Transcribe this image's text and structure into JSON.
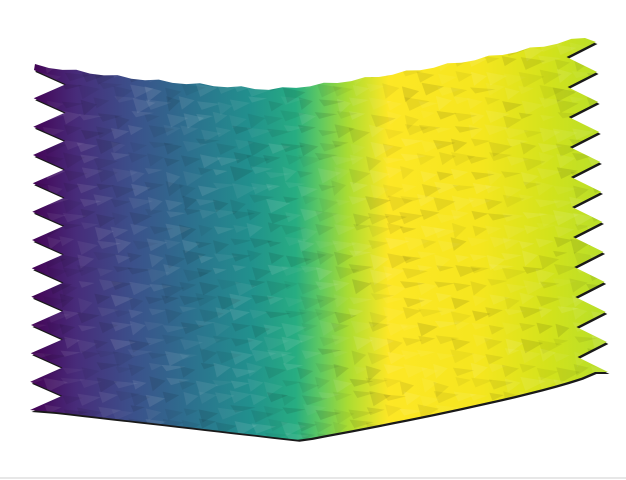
{
  "figure": {
    "description_visible_text": "",
    "kind": "3d-surface-render",
    "colormap": "viridis",
    "colors": {
      "background": "#ffffff",
      "outline": "#000000",
      "viridis_stops": [
        "#440154",
        "#472c7a",
        "#3b518b",
        "#2c718e",
        "#21908d",
        "#27ad81",
        "#5cc863",
        "#aadc32",
        "#fde725",
        "#f5e61e",
        "#d2e21b",
        "#b5de2b"
      ]
    }
  }
}
